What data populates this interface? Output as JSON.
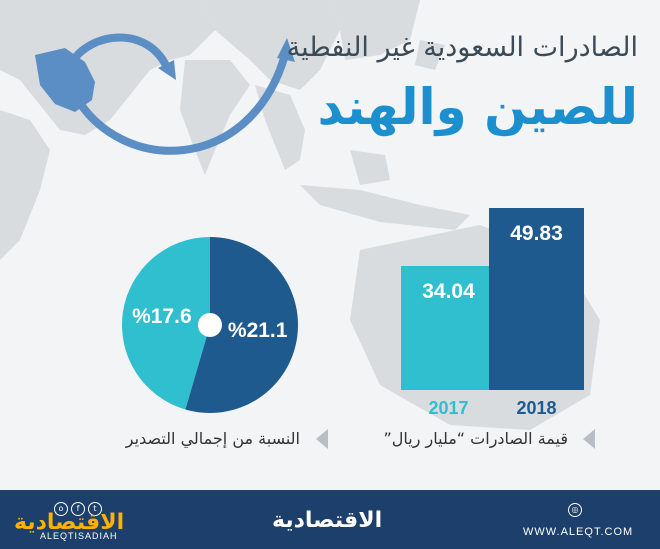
{
  "header": {
    "subtitle": "الصادرات السعودية غير النفطية",
    "title": "للصين والهند"
  },
  "colors": {
    "dark_blue": "#1f5a8e",
    "teal": "#2fbfcf",
    "title_blue": "#1c8fcf",
    "footer_bg": "#1d3f6b"
  },
  "chart_data": [
    {
      "type": "bar",
      "categories": [
        "2017",
        "2018"
      ],
      "values": [
        34.04,
        49.83
      ],
      "value_labels": [
        "34.04",
        "49.83"
      ],
      "colors": [
        "#2fbfcf",
        "#1f5a8e"
      ],
      "caption": "قيمة الصادرات “مليار ريال”"
    },
    {
      "type": "pie",
      "slices": [
        {
          "label": "%21.1",
          "value": 21.1,
          "color": "#1f5a8e"
        },
        {
          "label": "%17.6",
          "value": 17.6,
          "color": "#2fbfcf"
        }
      ],
      "caption": "النسبة من إجمالي التصدير"
    }
  ],
  "footer": {
    "brand": "الاقتصادية",
    "social_handle": "ALEQTISADIAH",
    "website": "WWW.ALEQT.COM"
  },
  "icons": [
    "twitter-icon",
    "facebook-icon",
    "instagram-icon",
    "globe-icon",
    "chevron-left-icon",
    "arrow-icon"
  ]
}
